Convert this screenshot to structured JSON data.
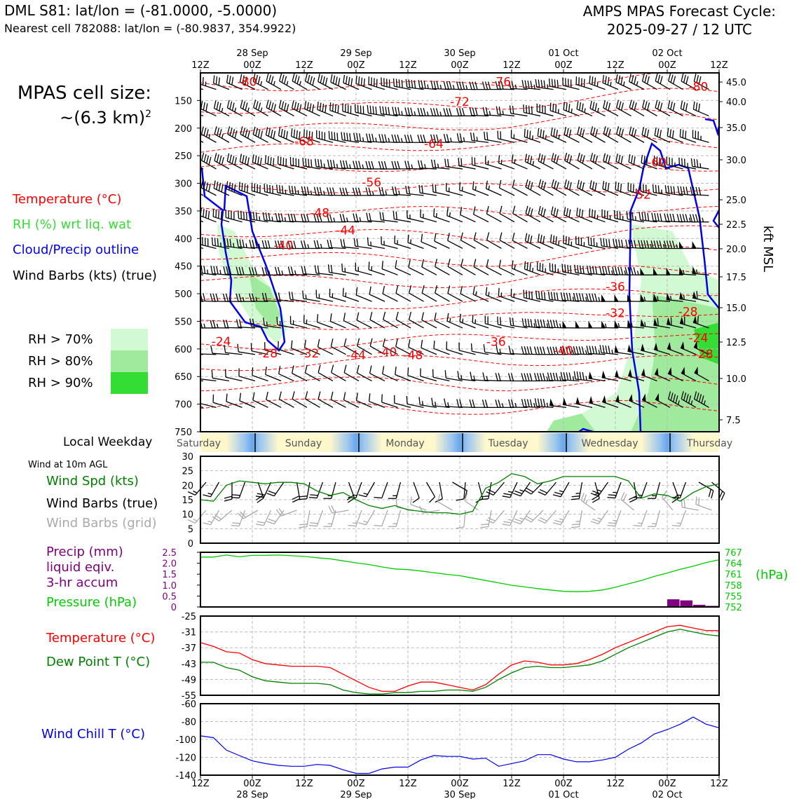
{
  "header": {
    "station_line": "DML S81: lat/lon = (-81.0000, -5.0000)",
    "nearest_line": "Nearest cell 782088: lat/lon = (-80.9837, 354.9922)",
    "model_title": "AMPS MPAS Forecast Cycle:",
    "cycle": "2025-09-27 / 12 UTC"
  },
  "cell_size": {
    "line1": "MPAS cell size:",
    "line2": "~(6.3 km)"
  },
  "legend_top": {
    "temperature": "Temperature (°C)",
    "rh": "RH (%) wrt liq. wat",
    "cloud": "Cloud/Precip outline",
    "wind": "Wind Barbs (kts) (true)"
  },
  "rh_swatches": [
    {
      "label": "RH > 70%",
      "color": "#d2fad2"
    },
    {
      "label": "RH > 80%",
      "color": "#a0ea9e"
    },
    {
      "label": "RH > 90%",
      "color": "#33dd33"
    }
  ],
  "legend_weekday": "Local Weekday",
  "legend_wind10": {
    "title": "Wind at 10m AGL",
    "speed": "Wind Spd (kts)",
    "barbs_true": "Wind Barbs (true)",
    "barbs_grid": "Wind Barbs (grid)"
  },
  "legend_precip": {
    "precip1": "Precip (mm)",
    "precip2": "liquid eqiv.",
    "precip3": "3-hr accum",
    "pressure": "Pressure (hPa)"
  },
  "legend_temp": {
    "temperature": "Temperature (°C)",
    "dewpoint": "Dew Point T (°C)"
  },
  "legend_windchill": "Wind Chill T (°C)",
  "colors": {
    "temp": "#ff0000",
    "green": "#008000",
    "lime": "#00cc00",
    "purple": "#800080",
    "blue": "#0000ee",
    "grey": "#aaaaaa"
  },
  "chart_data": [
    {
      "type": "cross-section",
      "name": "time-height",
      "time_ticks": [
        "12Z",
        "00Z",
        "12Z",
        "00Z",
        "12Z",
        "00Z",
        "12Z",
        "00Z",
        "12Z",
        "00Z",
        "12Z"
      ],
      "date_labels": [
        "28 Sep",
        "29 Sep",
        "30 Sep",
        "01 Oct",
        "02 Oct"
      ],
      "y_left_ticks": [
        150,
        200,
        250,
        300,
        350,
        400,
        450,
        500,
        550,
        600,
        650,
        700,
        750
      ],
      "y_right_ticks": [
        "45.0",
        "40.0",
        "35.0",
        "30.0",
        "25.0",
        "22.5",
        "20.0",
        "17.5",
        "15.0",
        "12.5",
        "10.0",
        "7.5"
      ],
      "y_right_label": "kft MSL",
      "temp_labels": [
        {
          "t": "-80",
          "h": 0.9,
          "p": 116
        },
        {
          "t": "-76",
          "h": 5.8,
          "p": 116
        },
        {
          "t": "-80",
          "h": 9.6,
          "p": 125
        },
        {
          "t": "-72",
          "h": 5.0,
          "p": 152
        },
        {
          "t": "-68",
          "h": 2.0,
          "p": 224
        },
        {
          "t": "-64",
          "h": 4.5,
          "p": 228
        },
        {
          "t": "-60",
          "h": 8.8,
          "p": 262
        },
        {
          "t": "-56",
          "h": 3.3,
          "p": 298
        },
        {
          "t": "-52",
          "h": 8.5,
          "p": 320
        },
        {
          "t": "-48",
          "h": 2.3,
          "p": 353
        },
        {
          "t": "-44",
          "h": 2.8,
          "p": 385
        },
        {
          "t": "-40",
          "h": 1.6,
          "p": 412
        },
        {
          "t": "-36",
          "h": 8.0,
          "p": 487
        },
        {
          "t": "-32",
          "h": 8.0,
          "p": 535
        },
        {
          "t": "-28",
          "h": 9.4,
          "p": 532
        },
        {
          "t": "-24",
          "h": 0.4,
          "p": 586
        },
        {
          "t": "-24",
          "h": 9.6,
          "p": 580
        },
        {
          "t": "-28",
          "h": 1.3,
          "p": 608
        },
        {
          "t": "-32",
          "h": 2.1,
          "p": 608
        },
        {
          "t": "-44",
          "h": 3.0,
          "p": 611
        },
        {
          "t": "-40",
          "h": 3.6,
          "p": 605
        },
        {
          "t": "-48",
          "h": 4.1,
          "p": 611
        },
        {
          "t": "-36",
          "h": 5.7,
          "p": 587
        },
        {
          "t": "-40",
          "h": 7.0,
          "p": 603
        },
        {
          "t": "-28",
          "h": 9.7,
          "p": 609
        }
      ]
    },
    {
      "type": "weekday-strip",
      "days": [
        "Saturday",
        "Sunday",
        "Monday",
        "Tuesday",
        "Wednesday",
        "Thursday"
      ]
    },
    {
      "type": "line",
      "name": "wind-speed-10m",
      "ylim": [
        0,
        30
      ],
      "y_ticks": [
        0,
        5,
        10,
        15,
        20,
        25,
        30
      ],
      "x_hours": [
        0,
        3,
        6,
        9,
        12,
        15,
        18,
        21,
        24,
        27,
        30,
        33,
        36,
        39,
        42,
        45,
        48,
        51,
        54,
        57,
        60,
        63,
        66,
        69,
        72,
        75,
        78,
        81,
        84,
        87,
        90,
        93,
        96,
        99,
        102,
        105,
        108,
        111,
        114,
        117,
        120
      ],
      "values": [
        15,
        14.5,
        20,
        21.5,
        21,
        20.5,
        21,
        21,
        20.5,
        18,
        16.5,
        17.5,
        15,
        13,
        12,
        13,
        11.5,
        11,
        10.5,
        10.5,
        10,
        11,
        19,
        21,
        24,
        23,
        20.5,
        21.5,
        23,
        23,
        23,
        23,
        23,
        21.5,
        15.5,
        17,
        16.5,
        14.5,
        17.5,
        19.5,
        20.5
      ],
      "barb_dirs": [
        40,
        30,
        0,
        20,
        340,
        25,
        35,
        350,
        10,
        20,
        15,
        340,
        20,
        30,
        20,
        15,
        340,
        330,
        350,
        300,
        5,
        345,
        10,
        40,
        25,
        35,
        45,
        40,
        30,
        10,
        345,
        35,
        20,
        350,
        20,
        15,
        340,
        20,
        300,
        310,
        340
      ],
      "grid_barb_dirs": [
        40,
        30,
        50,
        20,
        60,
        25,
        35,
        70,
        10,
        20,
        15,
        80,
        20,
        30,
        20,
        15,
        100,
        110,
        80,
        120,
        5,
        125,
        10,
        40,
        25,
        35,
        45,
        40,
        30,
        10,
        125,
        35,
        20,
        130,
        20,
        15,
        140,
        20,
        100,
        110,
        120
      ]
    },
    {
      "type": "bar+line",
      "name": "precip-pressure",
      "precip_ylim": [
        0,
        2.5
      ],
      "precip_ticks": [
        "0",
        "0.5",
        "1.0",
        "1.5",
        "2.0",
        "2.5"
      ],
      "pressure_ylim": [
        752,
        767
      ],
      "pressure_ticks": [
        "752",
        "755",
        "758",
        "761",
        "764",
        "767"
      ],
      "pressure_label": "(hPa)",
      "x_hours": [
        0,
        3,
        6,
        9,
        12,
        15,
        18,
        21,
        24,
        27,
        30,
        33,
        36,
        39,
        42,
        45,
        48,
        51,
        54,
        57,
        60,
        63,
        66,
        69,
        72,
        75,
        78,
        81,
        84,
        87,
        90,
        93,
        96,
        99,
        102,
        105,
        108,
        111,
        114,
        117,
        120
      ],
      "pressure": [
        766.3,
        766.3,
        766.9,
        766.4,
        766.8,
        766.8,
        766.9,
        766.7,
        766.5,
        766.1,
        765.8,
        765.2,
        764.6,
        764.1,
        763.4,
        762.8,
        762.6,
        762.2,
        761.7,
        761.2,
        760.8,
        760.1,
        759.4,
        758.7,
        758.0,
        757.5,
        757.0,
        756.6,
        756.2,
        756.1,
        756.2,
        756.6,
        757.4,
        758.4,
        759.4,
        760.6,
        761.6,
        762.7,
        763.6,
        764.7,
        765.5
      ],
      "precip_bars": [
        {
          "start": 108,
          "end": 111,
          "value": 0.35
        },
        {
          "start": 111,
          "end": 114,
          "value": 0.3
        },
        {
          "start": 114,
          "end": 117,
          "value": 0.1
        },
        {
          "start": 117,
          "end": 120,
          "value": 0.05
        }
      ]
    },
    {
      "type": "line",
      "name": "temperature-dewpoint",
      "ylim": [
        -55,
        -25
      ],
      "y_ticks": [
        -25,
        -31,
        -37,
        -43,
        -49,
        -55
      ],
      "x_hours": [
        0,
        3,
        6,
        9,
        12,
        15,
        18,
        21,
        24,
        27,
        30,
        33,
        36,
        39,
        42,
        45,
        48,
        51,
        54,
        57,
        60,
        63,
        66,
        69,
        72,
        75,
        78,
        81,
        84,
        87,
        90,
        93,
        96,
        99,
        102,
        105,
        108,
        111,
        114,
        117,
        120
      ],
      "series": [
        {
          "name": "Temperature",
          "color": "#ff0000",
          "values": [
            -35,
            -36.5,
            -38.5,
            -39,
            -41.5,
            -43,
            -43.5,
            -44,
            -44,
            -44,
            -44.5,
            -47,
            -49.5,
            -52,
            -53.5,
            -53.5,
            -51.5,
            -50,
            -50,
            -51,
            -52,
            -53,
            -51,
            -47,
            -43.5,
            -42,
            -42.5,
            -43.5,
            -43.5,
            -43,
            -41.5,
            -39.5,
            -37,
            -35,
            -33,
            -31,
            -29,
            -28.5,
            -29.5,
            -30.5,
            -30.5
          ]
        },
        {
          "name": "Dew Point",
          "color": "#008000",
          "values": [
            -42.5,
            -42.5,
            -44.5,
            -45.5,
            -48,
            -49.5,
            -50,
            -50.5,
            -50.5,
            -50.5,
            -51,
            -53,
            -54,
            -54.5,
            -54.5,
            -54,
            -54,
            -53.5,
            -53.5,
            -53,
            -53,
            -53.5,
            -52,
            -49,
            -46.5,
            -44.5,
            -44,
            -44.5,
            -44.5,
            -44,
            -43.5,
            -42,
            -39.5,
            -37,
            -35,
            -33,
            -31,
            -30,
            -31,
            -32,
            -32.5
          ]
        }
      ]
    },
    {
      "type": "line",
      "name": "wind-chill",
      "ylim": [
        -140,
        -60
      ],
      "y_ticks": [
        -60,
        -80,
        -100,
        -120,
        -140
      ],
      "x_hours": [
        0,
        3,
        6,
        9,
        12,
        15,
        18,
        21,
        24,
        27,
        30,
        33,
        36,
        39,
        42,
        45,
        48,
        51,
        54,
        57,
        60,
        63,
        66,
        69,
        72,
        75,
        78,
        81,
        84,
        87,
        90,
        93,
        96,
        99,
        102,
        105,
        108,
        111,
        114,
        117,
        120
      ],
      "values": [
        -96,
        -98,
        -112,
        -118,
        -124,
        -127,
        -129,
        -130,
        -130,
        -128,
        -129,
        -134,
        -138,
        -138,
        -133,
        -131,
        -131,
        -123,
        -118,
        -119,
        -119,
        -122,
        -121,
        -130,
        -127,
        -124,
        -117,
        -117,
        -122,
        -125,
        -125,
        -123,
        -120,
        -111,
        -104,
        -94,
        -89,
        -83,
        -75,
        -83,
        -87
      ]
    }
  ]
}
